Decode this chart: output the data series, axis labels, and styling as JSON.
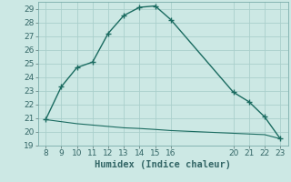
{
  "xlabel": "Humidex (Indice chaleur)",
  "bg_color": "#cce8e4",
  "grid_color": "#aacfcc",
  "line_color": "#1a6b60",
  "series1_x": [
    8,
    9,
    10,
    11,
    12,
    13,
    14,
    15,
    16,
    20,
    21,
    22,
    23
  ],
  "series1_y": [
    20.9,
    23.3,
    24.7,
    25.1,
    27.2,
    28.5,
    29.1,
    29.2,
    28.2,
    22.9,
    22.2,
    21.1,
    19.5
  ],
  "series2_x": [
    8,
    9,
    10,
    11,
    12,
    13,
    14,
    15,
    16,
    17,
    18,
    19,
    20,
    21,
    22,
    23
  ],
  "series2_y": [
    20.9,
    20.75,
    20.6,
    20.5,
    20.4,
    20.3,
    20.25,
    20.18,
    20.1,
    20.05,
    20.0,
    19.95,
    19.9,
    19.85,
    19.8,
    19.5
  ],
  "xlim": [
    7.5,
    23.5
  ],
  "ylim": [
    19,
    29.5
  ],
  "xticks": [
    8,
    9,
    10,
    11,
    12,
    13,
    14,
    15,
    16,
    20,
    21,
    22,
    23
  ],
  "yticks": [
    19,
    20,
    21,
    22,
    23,
    24,
    25,
    26,
    27,
    28,
    29
  ],
  "marker_size": 4,
  "linewidth1": 1.0,
  "linewidth2": 0.8,
  "tick_fontsize": 6.5,
  "xlabel_fontsize": 7.5
}
